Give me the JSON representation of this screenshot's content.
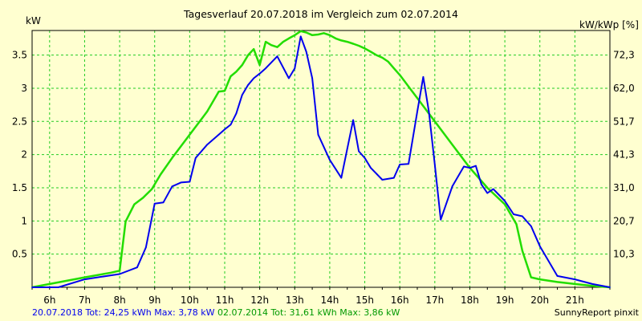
{
  "chart_data": {
    "type": "line",
    "title": "Tagesverlauf 20.07.2018 im Vergleich zum 02.07.2014",
    "ylabel_left": "kW",
    "ylabel_right": "kW/kWp [%]",
    "xlim": [
      5.5,
      22.0
    ],
    "ylim": [
      0,
      3.87
    ],
    "grid": true,
    "x_ticks": [
      {
        "value": 6,
        "label": "6h"
      },
      {
        "value": 7,
        "label": "7h"
      },
      {
        "value": 8,
        "label": "8h"
      },
      {
        "value": 9,
        "label": "9h"
      },
      {
        "value": 10,
        "label": "10h"
      },
      {
        "value": 11,
        "label": "11h"
      },
      {
        "value": 12,
        "label": "12h"
      },
      {
        "value": 13,
        "label": "13h"
      },
      {
        "value": 14,
        "label": "14h"
      },
      {
        "value": 15,
        "label": "15h"
      },
      {
        "value": 16,
        "label": "16h"
      },
      {
        "value": 17,
        "label": "17h"
      },
      {
        "value": 18,
        "label": "18h"
      },
      {
        "value": 19,
        "label": "19h"
      },
      {
        "value": 20,
        "label": "20h"
      },
      {
        "value": 21,
        "label": "21h"
      }
    ],
    "y_ticks_left": [
      {
        "value": 0.5,
        "label": "0.5"
      },
      {
        "value": 1.0,
        "label": "1"
      },
      {
        "value": 1.5,
        "label": "1.5"
      },
      {
        "value": 2.0,
        "label": "2"
      },
      {
        "value": 2.5,
        "label": "2.5"
      },
      {
        "value": 3.0,
        "label": "3"
      },
      {
        "value": 3.5,
        "label": "3.5"
      }
    ],
    "y_ticks_right": [
      {
        "value": 0.5,
        "label": "10,3"
      },
      {
        "value": 1.0,
        "label": "20,7"
      },
      {
        "value": 1.5,
        "label": "31,0"
      },
      {
        "value": 2.0,
        "label": "41,3"
      },
      {
        "value": 2.5,
        "label": "51,7"
      },
      {
        "value": 3.0,
        "label": "62,0"
      },
      {
        "value": 3.5,
        "label": "72,3"
      }
    ],
    "series": [
      {
        "color": "#22dd00",
        "x": [
          5.5,
          7.0,
          7.75,
          8.0,
          8.17,
          8.42,
          8.67,
          8.92,
          9.17,
          9.5,
          10.0,
          10.5,
          10.83,
          11.0,
          11.17,
          11.33,
          11.5,
          11.67,
          11.83,
          12.0,
          12.17,
          12.33,
          12.5,
          12.67,
          12.83,
          13.0,
          13.17,
          13.33,
          13.5,
          13.67,
          13.83,
          14.0,
          14.17,
          14.33,
          14.5,
          14.67,
          14.83,
          15.0,
          15.17,
          15.33,
          15.5,
          15.67,
          15.83,
          16.0,
          16.5,
          17.0,
          17.5,
          18.0,
          18.5,
          19.0,
          19.33,
          19.5,
          19.75,
          20.0,
          20.5,
          21.0,
          21.5,
          22.0
        ],
        "y": [
          0.0,
          0.15,
          0.22,
          0.25,
          0.99,
          1.25,
          1.35,
          1.48,
          1.7,
          1.95,
          2.3,
          2.65,
          2.95,
          2.96,
          3.18,
          3.25,
          3.35,
          3.5,
          3.59,
          3.35,
          3.7,
          3.65,
          3.62,
          3.7,
          3.75,
          3.8,
          3.86,
          3.84,
          3.8,
          3.81,
          3.83,
          3.8,
          3.75,
          3.72,
          3.7,
          3.67,
          3.64,
          3.6,
          3.55,
          3.5,
          3.46,
          3.4,
          3.3,
          3.2,
          2.85,
          2.5,
          2.15,
          1.8,
          1.5,
          1.25,
          0.95,
          0.55,
          0.15,
          0.12,
          0.08,
          0.05,
          0.02,
          0.0
        ]
      },
      {
        "color": "#0000ee",
        "x": [
          5.5,
          6.25,
          7.0,
          7.75,
          8.0,
          8.5,
          8.75,
          9.0,
          9.25,
          9.5,
          9.75,
          10.0,
          10.17,
          10.5,
          10.83,
          11.0,
          11.17,
          11.33,
          11.5,
          11.67,
          11.83,
          12.0,
          12.17,
          12.5,
          12.83,
          13.0,
          13.17,
          13.33,
          13.5,
          13.67,
          14.0,
          14.33,
          14.67,
          14.83,
          15.0,
          15.17,
          15.5,
          15.83,
          16.0,
          16.25,
          16.5,
          16.67,
          16.83,
          17.0,
          17.17,
          17.5,
          17.83,
          18.0,
          18.17,
          18.33,
          18.5,
          18.67,
          19.0,
          19.25,
          19.5,
          19.75,
          20.0,
          20.5,
          21.0,
          21.5,
          22.0
        ],
        "y": [
          0.0,
          0.0,
          0.12,
          0.18,
          0.2,
          0.3,
          0.6,
          1.26,
          1.28,
          1.52,
          1.58,
          1.59,
          1.95,
          2.15,
          2.3,
          2.38,
          2.45,
          2.62,
          2.9,
          3.05,
          3.15,
          3.22,
          3.3,
          3.48,
          3.15,
          3.3,
          3.78,
          3.55,
          3.15,
          2.3,
          1.92,
          1.65,
          2.52,
          2.05,
          1.95,
          1.8,
          1.62,
          1.65,
          1.85,
          1.86,
          2.65,
          3.17,
          2.65,
          1.85,
          1.02,
          1.52,
          1.82,
          1.8,
          1.83,
          1.55,
          1.42,
          1.48,
          1.3,
          1.1,
          1.07,
          0.92,
          0.62,
          0.17,
          0.12,
          0.05,
          0.0
        ]
      }
    ]
  },
  "legend": {
    "series1_text": "20.07.2018 Tot: 24,25 kWh Max: 3,78 kW",
    "series2_text": "02.07.2014 Tot: 31,61 kWh Max: 3,86 kW",
    "series1_color": "#0000ee",
    "series2_color": "#22dd00"
  },
  "footer_right": "SunnyReport pinxit"
}
